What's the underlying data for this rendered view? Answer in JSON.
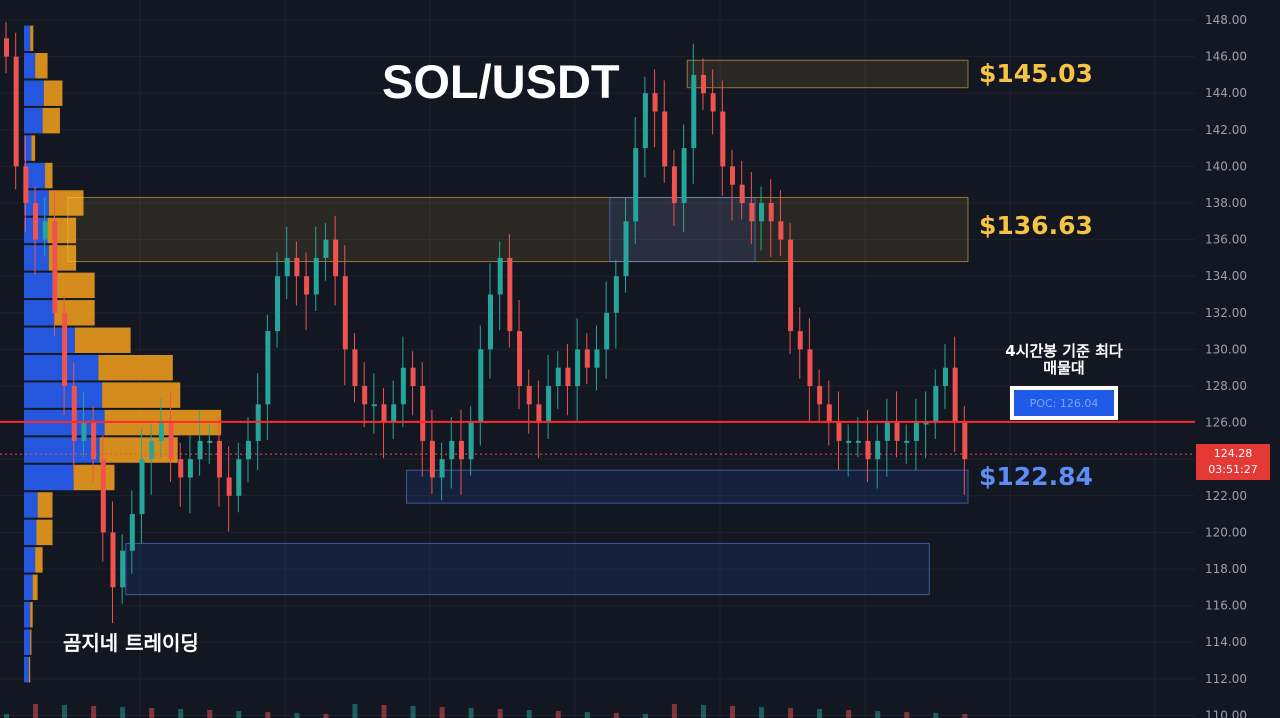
{
  "chart_data": {
    "type": "candlestick",
    "title": "SOL/USDT",
    "ylim": [
      110,
      149
    ],
    "y_ticks": [
      "148.00",
      "146.00",
      "144.00",
      "142.00",
      "140.00",
      "138.00",
      "136.00",
      "134.00",
      "132.00",
      "130.00",
      "128.00",
      "126.00",
      "124.00",
      "122.00",
      "120.00",
      "118.00",
      "116.00",
      "114.00",
      "112.00",
      "110.00"
    ],
    "key_levels": [
      {
        "label": "$145.03",
        "price": 145.03,
        "color": "#f6c343"
      },
      {
        "label": "$136.63",
        "price": 136.63,
        "color": "#f6c343"
      },
      {
        "label": "$122.84",
        "price": 122.84,
        "color": "#5e8ef5"
      }
    ],
    "poc": {
      "price": 126.04,
      "label": "POC: 126.04",
      "note": "4시간봉 기준 최다 매물대"
    },
    "current_price": {
      "price": "124.28",
      "countdown": "03:51:27"
    },
    "closes": [
      146,
      140,
      138,
      136,
      137,
      132,
      128,
      125,
      126,
      124,
      120,
      117,
      119,
      121,
      124,
      125,
      126,
      124,
      123,
      124,
      125,
      125,
      123,
      122,
      124,
      125,
      127,
      131,
      134,
      135,
      134,
      133,
      135,
      136,
      134,
      130,
      128,
      127,
      127,
      126,
      127,
      129,
      128,
      125,
      123,
      124,
      125,
      124,
      126,
      130,
      133,
      135,
      131,
      128,
      127,
      126,
      128,
      129,
      128,
      130,
      129,
      130,
      132,
      134,
      137,
      141,
      144,
      143,
      140,
      138,
      141,
      145,
      144,
      143,
      140,
      139,
      138,
      137,
      138,
      137,
      136,
      131,
      130,
      128,
      127,
      126,
      125,
      125,
      125,
      124,
      125,
      126,
      125,
      125,
      126,
      126,
      128,
      129,
      126,
      124
    ],
    "volume_profile": [
      {
        "price": 147.0,
        "buy": 10,
        "sell": 5
      },
      {
        "price": 145.5,
        "buy": 18,
        "sell": 20
      },
      {
        "price": 144.0,
        "buy": 32,
        "sell": 30
      },
      {
        "price": 142.5,
        "buy": 30,
        "sell": 28
      },
      {
        "price": 141.0,
        "buy": 12,
        "sell": 6
      },
      {
        "price": 139.5,
        "buy": 34,
        "sell": 12
      },
      {
        "price": 138.0,
        "buy": 40,
        "sell": 56
      },
      {
        "price": 136.5,
        "buy": 38,
        "sell": 46
      },
      {
        "price": 135.0,
        "buy": 40,
        "sell": 44
      },
      {
        "price": 133.5,
        "buy": 50,
        "sell": 64
      },
      {
        "price": 132.0,
        "buy": 50,
        "sell": 64
      },
      {
        "price": 130.5,
        "buy": 82,
        "sell": 90
      },
      {
        "price": 129.0,
        "buy": 120,
        "sell": 120
      },
      {
        "price": 127.5,
        "buy": 126,
        "sell": 126
      },
      {
        "price": 126.0,
        "buy": 130,
        "sell": 188
      },
      {
        "price": 124.5,
        "buy": 122,
        "sell": 126
      },
      {
        "price": 123.0,
        "buy": 80,
        "sell": 66
      },
      {
        "price": 121.5,
        "buy": 22,
        "sell": 24
      },
      {
        "price": 120.0,
        "buy": 20,
        "sell": 26
      },
      {
        "price": 118.5,
        "buy": 18,
        "sell": 12
      },
      {
        "price": 117.0,
        "buy": 14,
        "sell": 8
      },
      {
        "price": 115.5,
        "buy": 10,
        "sell": 4
      },
      {
        "price": 114.0,
        "buy": 10,
        "sell": 2
      },
      {
        "price": 112.5,
        "buy": 8,
        "sell": 2
      }
    ],
    "zones": [
      {
        "top": 145.8,
        "bottom": 144.3,
        "x0": 0.71,
        "x1": 1.0,
        "color": "yellow"
      },
      {
        "top": 138.3,
        "bottom": 134.8,
        "x0": 0.07,
        "x1": 1.0,
        "color": "yellow"
      },
      {
        "top": 138.3,
        "bottom": 134.8,
        "x0": 0.63,
        "x1": 0.78,
        "color": "blue"
      },
      {
        "top": 123.4,
        "bottom": 121.6,
        "x0": 0.42,
        "x1": 1.0,
        "color": "blue"
      },
      {
        "top": 119.4,
        "bottom": 116.6,
        "x0": 0.13,
        "x1": 0.96,
        "color": "blue"
      }
    ]
  },
  "brand": "곰지네 트레이딩"
}
